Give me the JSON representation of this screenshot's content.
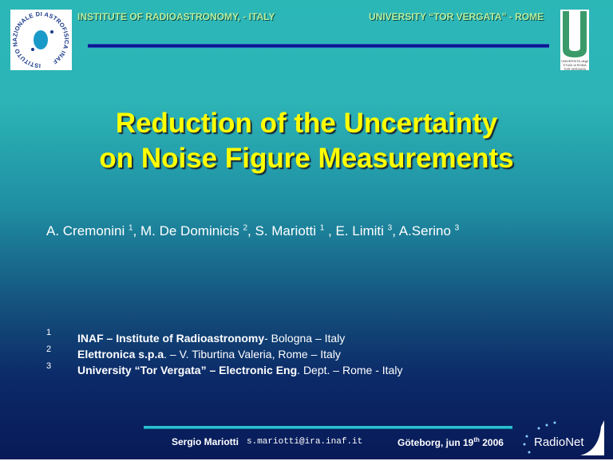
{
  "header": {
    "left": "INSTITUTE OF RADIOASTRONOMY, - ITALY",
    "right": "UNIVERSITY “TOR VERGATA” - ROME",
    "inaf_logo_text": "ISTITUTO NAZIONALE DI ASTROFISICA INAF",
    "tv_logo_text": "UNIVERSITÀ degli STUDI di ROMA TOR VERGATA"
  },
  "title": {
    "line1": "Reduction of the Uncertainty",
    "line2": "on Noise Figure Measurements"
  },
  "authors": [
    {
      "name": "A. Cremonini ",
      "sup": "1"
    },
    {
      "name": ",  M. De Dominicis ",
      "sup": "2"
    },
    {
      "name": ", S. Mariotti ",
      "sup": "1"
    },
    {
      "name": " , E. Limiti ",
      "sup": "3"
    },
    {
      "name": ", A.Serino ",
      "sup": "3"
    }
  ],
  "affiliations": [
    {
      "num": "1",
      "bold": "INAF – Institute of Radioastronomy",
      "rest": "- Bologna – Italy"
    },
    {
      "num": "2",
      "bold": "Elettronica s.p.a",
      "rest": ". – V. Tiburtina Valeria, Rome – Italy"
    },
    {
      "num": "3",
      "bold": "University “Tor Vergata” – Electronic Eng",
      "rest": ". Dept. – Rome - Italy"
    }
  ],
  "footer": {
    "presenter": "Sergio Mariotti",
    "email": "s.mariotti@ira.inaf.it",
    "place": "Göteborg, jun 19",
    "sup": "th",
    "year": " 2006",
    "logo": "RadioNet"
  },
  "colors": {
    "title": "#ffff00",
    "header_text": "#b8f0a0",
    "bg_top": "#2cb7b7",
    "bg_bottom": "#081a58"
  }
}
